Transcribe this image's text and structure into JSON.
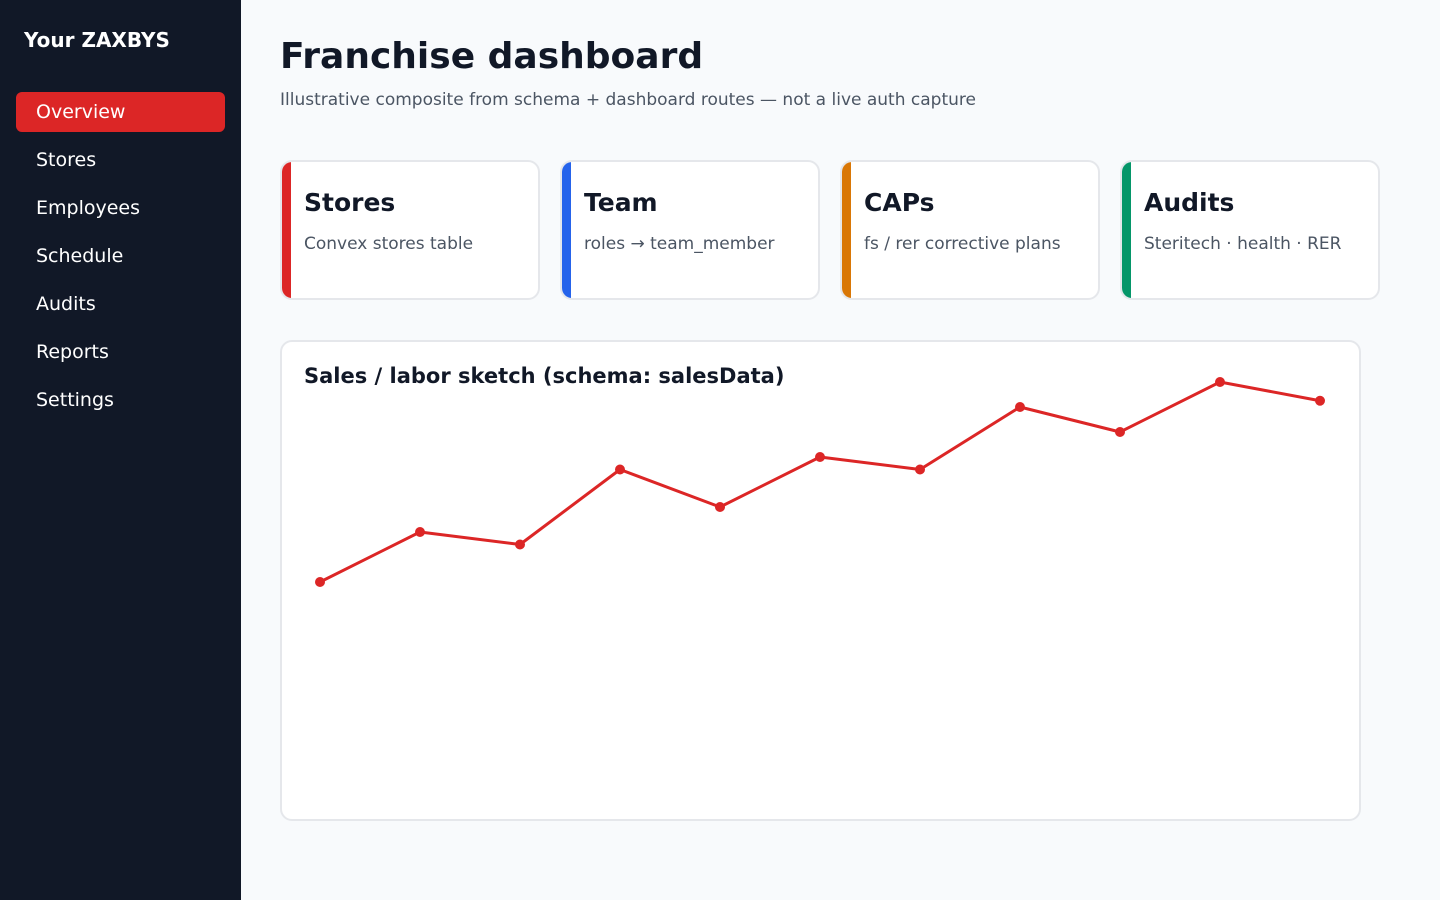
{
  "sidebar": {
    "brand": "Your ZAXBYS",
    "items": [
      {
        "label": "Overview",
        "active": true
      },
      {
        "label": "Stores",
        "active": false
      },
      {
        "label": "Employees",
        "active": false
      },
      {
        "label": "Schedule",
        "active": false
      },
      {
        "label": "Audits",
        "active": false
      },
      {
        "label": "Reports",
        "active": false
      },
      {
        "label": "Settings",
        "active": false
      }
    ]
  },
  "header": {
    "title": "Franchise dashboard",
    "subtitle": "Illustrative composite from schema + dashboard routes — not a live auth capture"
  },
  "cards": [
    {
      "title": "Stores",
      "desc": "Convex stores table",
      "color": "#dc2626"
    },
    {
      "title": "Team",
      "desc": "roles → team_member",
      "color": "#2563eb"
    },
    {
      "title": "CAPs",
      "desc": "fs / rer corrective plans",
      "color": "#d97706"
    },
    {
      "title": "Audits",
      "desc": "Steritech · health · RER",
      "color": "#059669"
    }
  ],
  "chart": {
    "title": "Sales / labor sketch (schema: salesData)"
  },
  "chart_data": {
    "type": "line",
    "title": "Sales / labor sketch (schema: salesData)",
    "xlabel": "",
    "ylabel": "",
    "grid": false,
    "x": [
      1,
      2,
      3,
      4,
      5,
      6,
      7,
      8,
      9,
      10,
      11
    ],
    "series": [
      {
        "values": [
          16,
          20,
          19,
          25,
          22,
          26,
          25,
          30,
          28,
          32,
          30.5
        ],
        "color": "#dc2626"
      }
    ],
    "ylim": [
      0,
      32
    ]
  }
}
